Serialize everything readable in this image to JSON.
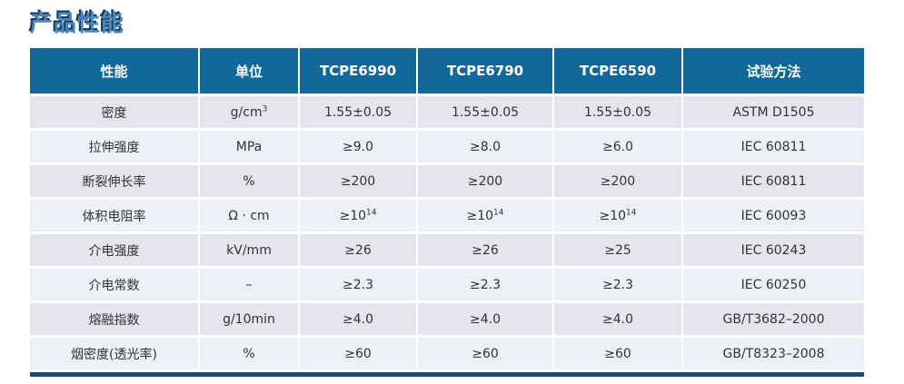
{
  "page_title": "产品性能",
  "colors": {
    "title_fill": "#4c86ba",
    "title_shadow": "#16395f",
    "header_bg": "#11689b",
    "header_text": "#ffffff",
    "row_odd_bg": "#e6e4ed",
    "row_even_bg": "#edf0f7",
    "cell_text": "#333333",
    "bottom_bar": "#1f4878"
  },
  "table": {
    "columns": [
      "性能",
      "单位",
      "TCPE6990",
      "TCPE6790",
      "TCPE6590",
      "试验方法"
    ],
    "rows": [
      [
        "密度",
        {
          "text": "g/cm",
          "sup": "3"
        },
        "1.55±0.05",
        "1.55±0.05",
        "1.55±0.05",
        "ASTM D1505"
      ],
      [
        "拉伸强度",
        "MPa",
        "≥9.0",
        "≥8.0",
        "≥6.0",
        "IEC 60811"
      ],
      [
        "断裂伸长率",
        "%",
        "≥200",
        "≥200",
        "≥200",
        "IEC 60811"
      ],
      [
        "体积电阻率",
        "Ω · cm",
        {
          "text": "≥10",
          "sup": "14"
        },
        {
          "text": "≥10",
          "sup": "14"
        },
        {
          "text": "≥10",
          "sup": "14"
        },
        "IEC 60093"
      ],
      [
        "介电强度",
        "kV/mm",
        "≥26",
        "≥26",
        "≥25",
        "IEC 60243"
      ],
      [
        "介电常数",
        "–",
        "≥2.3",
        "≥2.3",
        "≥2.3",
        "IEC 60250"
      ],
      [
        "熔融指数",
        "g/10min",
        "≥4.0",
        "≥4.0",
        "≥4.0",
        "GB/T3682–2000"
      ],
      [
        "烟密度(透光率)",
        "%",
        "≥60",
        "≥60",
        "≥60",
        "GB/T8323–2008"
      ]
    ]
  }
}
